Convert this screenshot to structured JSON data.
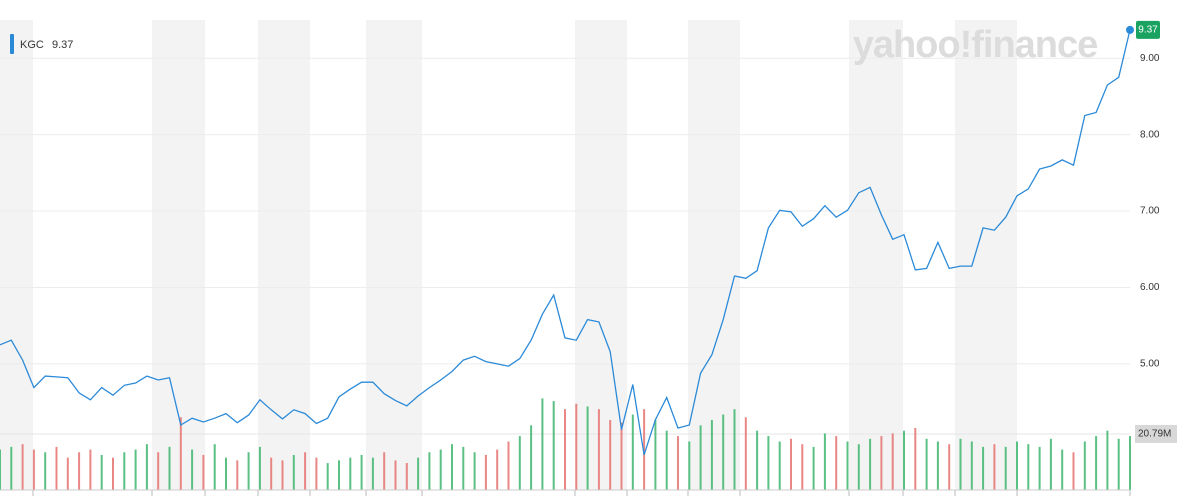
{
  "chart_data": {
    "type": "line",
    "watermark": "yahoo!finance",
    "series": [
      {
        "name": "KGC",
        "color": "#2b8ad8",
        "values": [
          5.25,
          5.31,
          5.05,
          4.69,
          4.84,
          4.83,
          4.82,
          4.62,
          4.53,
          4.69,
          4.59,
          4.72,
          4.75,
          4.84,
          4.79,
          4.82,
          4.2,
          4.29,
          4.24,
          4.29,
          4.35,
          4.23,
          4.33,
          4.53,
          4.4,
          4.28,
          4.4,
          4.35,
          4.22,
          4.29,
          4.57,
          4.67,
          4.76,
          4.76,
          4.61,
          4.52,
          4.45,
          4.58,
          4.69,
          4.79,
          4.9,
          5.05,
          5.1,
          5.03,
          5.0,
          4.97,
          5.07,
          5.31,
          5.65,
          5.9,
          5.34,
          5.31,
          5.58,
          5.55,
          5.16,
          4.14,
          4.73,
          3.81,
          4.27,
          4.56,
          4.16,
          4.2,
          4.88,
          5.12,
          5.58,
          6.15,
          6.12,
          6.22,
          6.78,
          7.01,
          6.99,
          6.8,
          6.9,
          7.07,
          6.92,
          7.01,
          7.24,
          7.31,
          6.95,
          6.63,
          6.69,
          6.23,
          6.25,
          6.59,
          6.25,
          6.28,
          6.28,
          6.78,
          6.75,
          6.92,
          7.2,
          7.29,
          7.55,
          7.59,
          7.67,
          7.6,
          8.25,
          8.29,
          8.65,
          8.75,
          9.37
        ]
      }
    ],
    "volume": {
      "axis": "y2",
      "up_color": "#3db56d",
      "down_color": "#e5726f",
      "values": [
        15,
        16,
        17,
        15,
        14,
        16,
        12,
        14,
        15,
        13,
        12,
        14,
        15,
        17,
        14,
        16,
        27,
        15,
        13,
        17,
        12,
        11,
        14,
        16,
        12,
        11,
        13,
        14,
        12,
        10,
        11,
        12,
        13,
        12,
        14,
        11,
        10,
        12,
        14,
        15,
        17,
        16,
        14,
        13,
        15,
        18,
        20,
        24,
        34,
        33,
        30,
        32,
        31,
        30,
        26,
        25,
        28,
        30,
        26,
        22,
        20,
        18,
        24,
        26,
        28,
        30,
        27,
        22,
        20,
        18,
        19,
        17,
        16,
        21,
        20,
        18,
        17,
        19,
        20,
        21,
        22,
        23,
        19,
        18,
        17,
        19,
        18,
        16,
        17,
        16,
        18,
        17,
        16,
        19,
        15,
        14,
        18,
        20,
        22,
        19,
        20
      ]
    },
    "ylim": [
      3.35,
      9.5
    ],
    "yticks": [
      {
        "value": 5,
        "label": "5.00"
      },
      {
        "value": 6,
        "label": "6.00"
      },
      {
        "value": 7,
        "label": "7.00"
      },
      {
        "value": 8,
        "label": "8.00"
      },
      {
        "value": 9,
        "label": "9.00"
      }
    ],
    "y2lim": [
      0,
      174.4
    ],
    "y2ticks": [
      {
        "value": 20.79,
        "label": "20.79M"
      }
    ],
    "grid": true,
    "last_price_color": "#1aa260"
  }
}
